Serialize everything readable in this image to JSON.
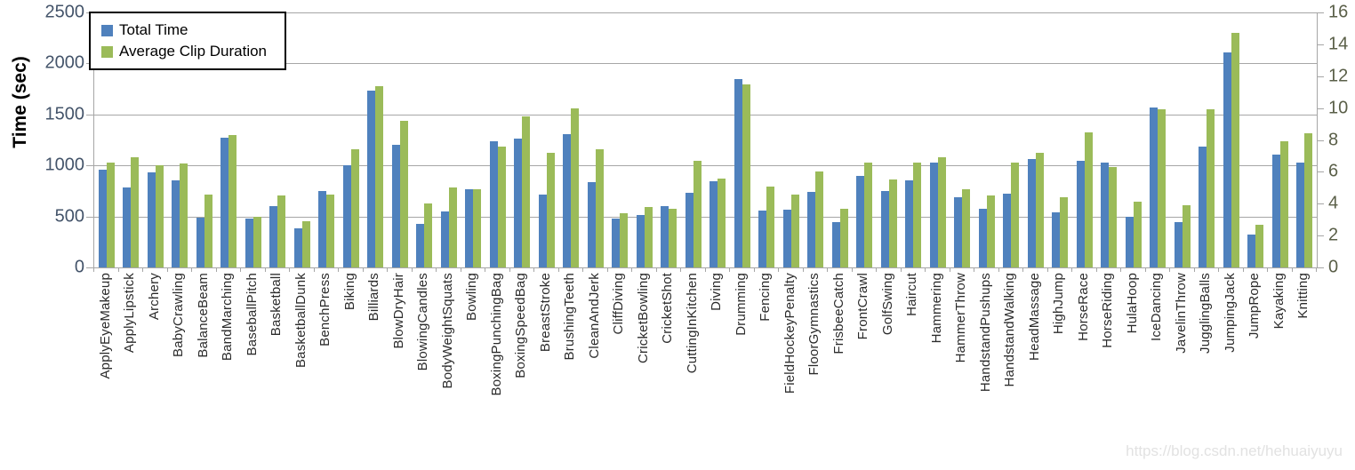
{
  "watermark": "https://blog.csdn.net/hehuaiyuyu",
  "colors": {
    "total_time_bar": "#4f81bd",
    "avg_clip_bar": "#9bbb59",
    "gridline": "#a6a6a6",
    "left_axis_text": "#44546a",
    "right_axis_text": "#5a5f48"
  },
  "chart_data": {
    "type": "bar",
    "title": "",
    "ylabel": "Time (sec)",
    "xlabel": "",
    "grid": true,
    "legend_position": "top-left",
    "legend": [
      "Total Time",
      "Average Clip Duration"
    ],
    "left_axis": {
      "label": "Time (sec)",
      "min": 0,
      "max": 2500,
      "step": 500,
      "ticks": [
        "0",
        "500",
        "1000",
        "1500",
        "2000",
        "2500"
      ]
    },
    "right_axis": {
      "min": 0,
      "max": 16,
      "step": 2,
      "ticks": [
        "0",
        "2",
        "4",
        "6",
        "8",
        "10",
        "12",
        "14",
        "16"
      ]
    },
    "categories": [
      "ApplyEyeMakeup",
      "ApplyLipstick",
      "Archery",
      "BabyCrawling",
      "BalanceBeam",
      "BandMarching",
      "BaseballPitch",
      "Basketball",
      "BasketballDunk",
      "BenchPress",
      "Biking",
      "Billiards",
      "BlowDryHair",
      "BlowingCandles",
      "BodyWeightSquats",
      "Bowling",
      "BoxingPunchingBag",
      "BoxingSpeedBag",
      "BreastStroke",
      "BrushingTeeth",
      "CleanAndJerk",
      "CliffDiving",
      "CricketBowling",
      "CricketShot",
      "CuttingInKitchen",
      "Diving",
      "Drumming",
      "Fencing",
      "FieldHockeyPenalty",
      "FloorGymnastics",
      "FrisbeeCatch",
      "FrontCrawl",
      "GolfSwing",
      "Haircut",
      "Hammering",
      "HammerThrow",
      "HandstandPushups",
      "HandstandWalking",
      "HeadMassage",
      "HighJump",
      "HorseRace",
      "HorseRiding",
      "HulaHoop",
      "IceDancing",
      "JavelinThrow",
      "JugglingBalls",
      "JumpingJack",
      "JumpRope",
      "Kayaking",
      "Knitting"
    ],
    "series": [
      {
        "name": "Total Time",
        "axis": "left",
        "color": "#4f81bd",
        "values": [
          960,
          780,
          930,
          855,
          490,
          1270,
          480,
          600,
          380,
          745,
          1000,
          1730,
          1200,
          430,
          550,
          765,
          1240,
          1265,
          715,
          1310,
          840,
          480,
          510,
          605,
          730,
          845,
          1850,
          555,
          565,
          740,
          445,
          900,
          750,
          855,
          1025,
          690,
          575,
          720,
          1060,
          540,
          1045,
          1030,
          500,
          1570,
          445,
          1185,
          2110,
          320,
          1105,
          1025
        ]
      },
      {
        "name": "Average Clip Duration",
        "axis": "right",
        "color": "#9bbb59",
        "values": [
          6.6,
          6.9,
          6.4,
          6.5,
          4.6,
          8.3,
          3.2,
          4.5,
          2.9,
          4.6,
          7.4,
          11.4,
          9.2,
          4.0,
          5.0,
          4.9,
          7.6,
          9.5,
          7.2,
          10.0,
          7.4,
          3.4,
          3.8,
          3.7,
          6.7,
          5.6,
          11.5,
          5.1,
          4.6,
          6.0,
          3.7,
          6.6,
          5.5,
          6.6,
          6.9,
          4.9,
          4.5,
          6.6,
          7.2,
          4.4,
          8.5,
          6.3,
          4.1,
          9.9,
          3.9,
          9.9,
          14.7,
          2.7,
          7.9,
          8.4
        ]
      }
    ]
  }
}
